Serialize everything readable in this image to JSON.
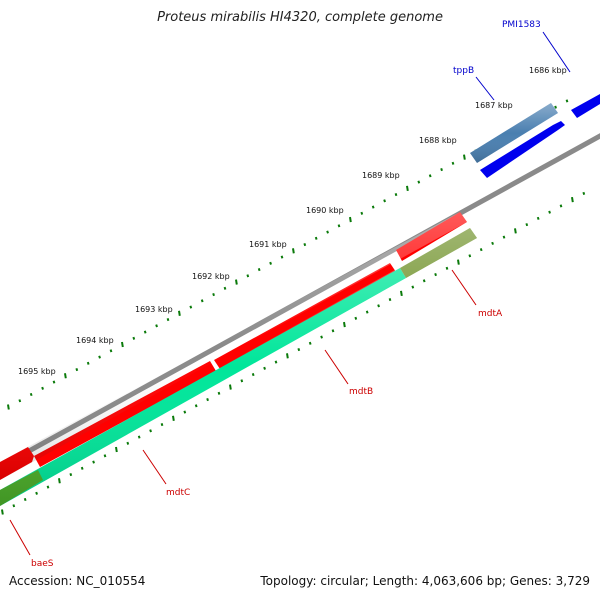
{
  "map": {
    "title": "Proteus mirabilis HI4320, complete genome",
    "accession": "Accession: NC_010554",
    "summary": "Topology: circular; Length: 4,063,606 bp; Genes: 3,729"
  },
  "scale": {
    "tick_labels": [
      "1686 kbp",
      "1687 kbp",
      "1688 kbp",
      "1689 kbp",
      "1690 kbp",
      "1691 kbp",
      "1692 kbp",
      "1693 kbp",
      "1694 kbp",
      "1695 kbp"
    ]
  },
  "genes": [
    {
      "name": "PMI1583",
      "label_color": "#0000cc",
      "feature_color": "#0000ee"
    },
    {
      "name": "tppB",
      "label_color": "#0000cc",
      "feature_color": "#4a7fb0"
    },
    {
      "name": "mdtA",
      "label_color": "#cc0000",
      "feature_color": "#6b8e23"
    },
    {
      "name": "mdtB",
      "label_color": "#cc0000",
      "feature_color": "#00e69a"
    },
    {
      "name": "mdtC",
      "label_color": "#cc0000",
      "feature_color": "#00e69a"
    },
    {
      "name": "baeS",
      "label_color": "#cc0000",
      "feature_color": "#4caf2a"
    }
  ],
  "colors": {
    "backbone": "#808080",
    "forward_strand_feature": "#ff0000",
    "tick_marks": "#0a7a0a"
  }
}
